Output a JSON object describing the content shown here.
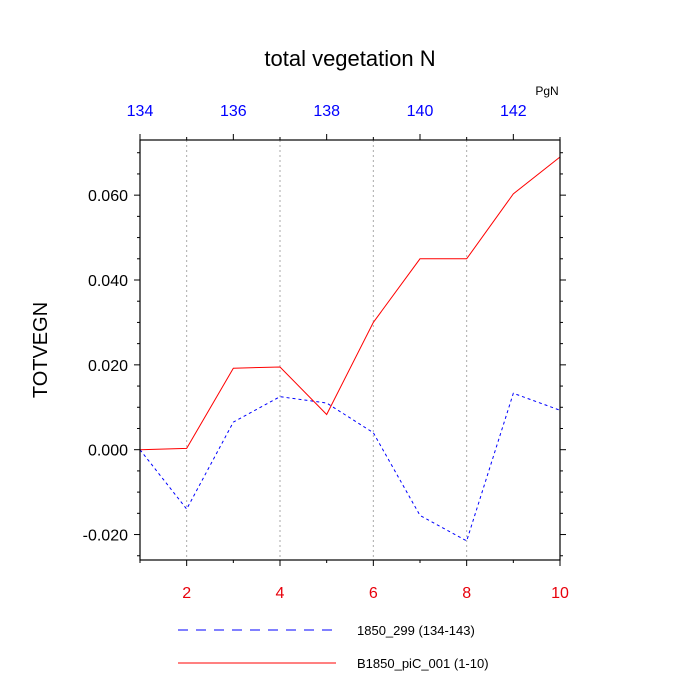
{
  "chart_data": {
    "type": "line",
    "title": "total vegetation N",
    "ylabel": "TOTVEGN",
    "units": "PgN",
    "ylim": [
      -0.026,
      0.073
    ],
    "yticks": [
      "-0.020",
      "0.000",
      "0.020",
      "0.040",
      "0.060"
    ],
    "ytick_values": [
      -0.02,
      0.0,
      0.02,
      0.04,
      0.06
    ],
    "x_bottom": {
      "lim": [
        1,
        10
      ],
      "ticks": [
        2,
        4,
        6,
        8,
        10
      ],
      "tick_labels": [
        "2",
        "4",
        "6",
        "8",
        "10"
      ],
      "color": "#e8000b"
    },
    "x_top": {
      "lim": [
        134,
        143
      ],
      "ticks": [
        134,
        136,
        138,
        140,
        142
      ],
      "tick_labels": [
        "134",
        "136",
        "138",
        "140",
        "142"
      ],
      "color": "#0000ff"
    },
    "grid": "vertical dotted at bottom ticks",
    "legend_position": "bottom",
    "series": [
      {
        "name": "1850_299 (134-143)",
        "axis": "top",
        "color": "#0000ff",
        "dash": "dashed",
        "x": [
          134,
          135,
          136,
          137,
          138,
          139,
          140,
          141,
          142,
          143
        ],
        "values": [
          0.0,
          -0.014,
          0.0065,
          0.0125,
          0.011,
          0.004,
          -0.0155,
          -0.0215,
          0.0133,
          0.0093
        ]
      },
      {
        "name": "B1850_piC_001 (1-10)",
        "axis": "bottom",
        "color": "#ff0000",
        "dash": "solid",
        "x": [
          1,
          2,
          3,
          4,
          5,
          6,
          7,
          8,
          9,
          10
        ],
        "values": [
          0.0,
          0.0003,
          0.0192,
          0.0195,
          0.0083,
          0.03,
          0.045,
          0.045,
          0.0603,
          0.069
        ]
      }
    ]
  }
}
